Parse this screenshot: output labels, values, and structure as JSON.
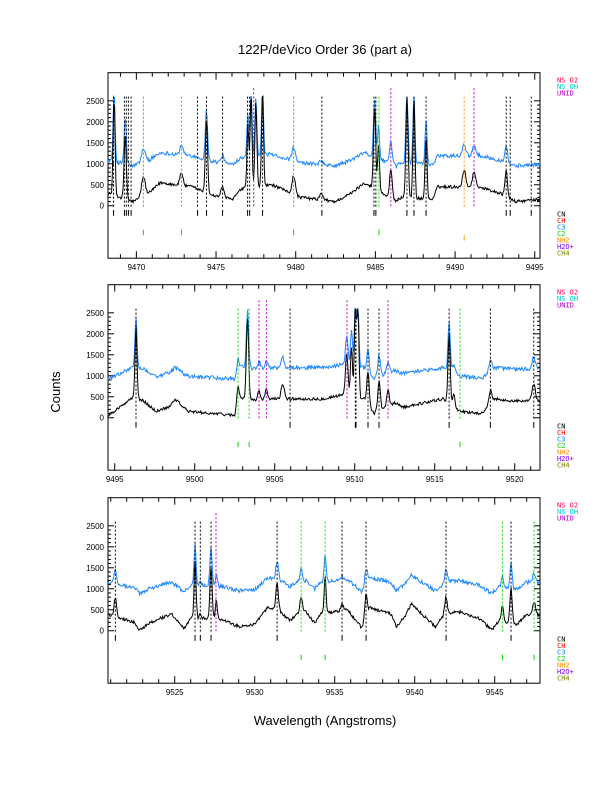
{
  "chart_data": {
    "type": "line",
    "title": "122P/deVico Order 36 (part a)",
    "xlabel": "Wavelength (Angstroms)",
    "ylabel": "Counts",
    "clip_max": 2600,
    "legend_top": [
      {
        "label": "NS O2",
        "color": "#ff0040"
      },
      {
        "label": "NS OH",
        "color": "#00c8c8"
      },
      {
        "label": "UNID",
        "color": "#b000c8"
      }
    ],
    "legend_bottom": [
      {
        "label": "CN",
        "color": "#000000"
      },
      {
        "label": "CH",
        "color": "#ff0000"
      },
      {
        "label": "C3",
        "color": "#0080ff"
      },
      {
        "label": "C2",
        "color": "#00d000"
      },
      {
        "label": "NH2",
        "color": "#ff9000"
      },
      {
        "label": "H2O+",
        "color": "#8000ff"
      },
      {
        "label": "CH4",
        "color": "#808000"
      }
    ],
    "series_colors": {
      "black": "#000000",
      "blue": "#1e88ff"
    },
    "line_colors": {
      "CN": "#000000",
      "C2": "#00e000",
      "UNID": "#c000c8",
      "NH2": "#ff9900"
    },
    "panels": [
      {
        "xlim": [
          9468.22,
          9495.33
        ],
        "ylim": [
          -1250,
          3170
        ],
        "xticks": [
          "9470",
          "9475",
          "9480",
          "9485",
          "9490",
          "9495"
        ],
        "yticks": [
          "0",
          "500",
          "1000",
          "1500",
          "2000",
          "2500"
        ],
        "baseline": [
          [
            9468.2,
            300
          ],
          [
            9469.8,
            100
          ],
          [
            9470.8,
            300
          ],
          [
            9471.5,
            550
          ],
          [
            9473.5,
            450
          ],
          [
            9474.8,
            250
          ],
          [
            9476.0,
            150
          ],
          [
            9476.6,
            400
          ],
          [
            9478.5,
            500
          ],
          [
            9480.3,
            200
          ],
          [
            9482.5,
            100
          ],
          [
            9483.5,
            300
          ],
          [
            9484.3,
            550
          ],
          [
            9486.3,
            100
          ],
          [
            9486.6,
            200
          ],
          [
            9488.6,
            150
          ],
          [
            9488.9,
            450
          ],
          [
            9490.3,
            450
          ],
          [
            9491.5,
            450
          ],
          [
            9492.8,
            300
          ],
          [
            9493.8,
            100
          ],
          [
            9495.4,
            150
          ]
        ],
        "peaks": [
          [
            9468.6,
            2300,
            0.06
          ],
          [
            9469.3,
            1500,
            0.07
          ],
          [
            9470.44,
            450,
            0.12
          ],
          [
            9472.83,
            300,
            0.1
          ],
          [
            9474.4,
            1700,
            0.07
          ],
          [
            9475.41,
            250,
            0.1
          ],
          [
            9477.0,
            1500,
            0.06
          ],
          [
            9477.2,
            2200,
            0.06
          ],
          [
            9477.5,
            2000,
            0.06
          ],
          [
            9477.92,
            2300,
            0.06
          ],
          [
            9479.87,
            450,
            0.1
          ],
          [
            9481.6,
            150,
            0.1
          ],
          [
            9484.95,
            1900,
            0.07
          ],
          [
            9485.2,
            1100,
            0.06
          ],
          [
            9485.97,
            700,
            0.08
          ],
          [
            9486.98,
            2400,
            0.07
          ],
          [
            9487.42,
            2400,
            0.06
          ],
          [
            9488.18,
            1500,
            0.06
          ],
          [
            9490.57,
            400,
            0.1
          ],
          [
            9491.19,
            350,
            0.1
          ],
          [
            9493.21,
            600,
            0.08
          ]
        ],
        "lines": [
          {
            "x": 9468.57,
            "s": "CN"
          },
          {
            "x": 9469.25,
            "s": "CN"
          },
          {
            "x": 9469.37,
            "s": "CN"
          },
          {
            "x": 9469.5,
            "s": "CN"
          },
          {
            "x": 9469.67,
            "s": "CN"
          },
          {
            "x": 9473.84,
            "s": "CN"
          },
          {
            "x": 9474.4,
            "s": "CN"
          },
          {
            "x": 9475.41,
            "s": "CN"
          },
          {
            "x": 9476.98,
            "s": "CN"
          },
          {
            "x": 9477.11,
            "s": "CN"
          },
          {
            "x": 9477.92,
            "s": "CN"
          },
          {
            "x": 9481.64,
            "s": "CN"
          },
          {
            "x": 9484.91,
            "s": "CN"
          },
          {
            "x": 9485.03,
            "s": "CN"
          },
          {
            "x": 9486.98,
            "s": "CN"
          },
          {
            "x": 9487.42,
            "s": "CN"
          },
          {
            "x": 9488.18,
            "s": "CN"
          },
          {
            "x": 9493.21,
            "s": "CN"
          },
          {
            "x": 9493.46,
            "s": "CN"
          },
          {
            "x": 9494.78,
            "s": "CN"
          },
          {
            "x": 9470.44,
            "s": "C2"
          },
          {
            "x": 9472.83,
            "s": "C2"
          },
          {
            "x": 9479.87,
            "s": "C2"
          },
          {
            "x": 9485.22,
            "s": "C2"
          },
          {
            "x": 9477.36,
            "s": "UNID"
          },
          {
            "x": 9485.97,
            "s": "UNID"
          },
          {
            "x": 9491.19,
            "s": "UNID"
          },
          {
            "x": 9490.57,
            "s": "NH2"
          }
        ]
      },
      {
        "xlim": [
          9494.58,
          9521.58
        ],
        "ylim": [
          -1250,
          3170
        ],
        "xticks": [
          "9495",
          "9500",
          "9505",
          "9510",
          "9515",
          "9520"
        ],
        "yticks": [
          "0",
          "500",
          "1000",
          "1500",
          "2000",
          "2500"
        ],
        "baseline": [
          [
            9494.58,
            50
          ],
          [
            9495.5,
            300
          ],
          [
            9496.2,
            500
          ],
          [
            9496.8,
            400
          ],
          [
            9497.6,
            150
          ],
          [
            9499.0,
            350
          ],
          [
            9499.6,
            150
          ],
          [
            9502.5,
            60
          ],
          [
            9502.7,
            500
          ],
          [
            9503.8,
            400
          ],
          [
            9505.0,
            450
          ],
          [
            9508.0,
            450
          ],
          [
            9509.3,
            550
          ],
          [
            9510.6,
            450
          ],
          [
            9511.2,
            100
          ],
          [
            9512.5,
            350
          ],
          [
            9513.0,
            250
          ],
          [
            9515.5,
            450
          ],
          [
            9516.6,
            150
          ],
          [
            9518.0,
            100
          ],
          [
            9518.8,
            450
          ],
          [
            9520.0,
            400
          ],
          [
            9521.58,
            400
          ]
        ],
        "peaks": [
          [
            9496.33,
            1700,
            0.06
          ],
          [
            9498.75,
            120,
            0.15
          ],
          [
            9502.71,
            250,
            0.07
          ],
          [
            9503.3,
            1950,
            0.07
          ],
          [
            9504.02,
            250,
            0.08
          ],
          [
            9504.48,
            250,
            0.08
          ],
          [
            9505.5,
            350,
            0.1
          ],
          [
            9509.5,
            1000,
            0.08
          ],
          [
            9509.8,
            1200,
            0.06
          ],
          [
            9510.04,
            2200,
            0.06
          ],
          [
            9510.2,
            2100,
            0.06
          ],
          [
            9510.83,
            800,
            0.07
          ],
          [
            9511.52,
            700,
            0.08
          ],
          [
            9512.08,
            400,
            0.08
          ],
          [
            9515.9,
            1650,
            0.07
          ],
          [
            9516.2,
            300,
            0.07
          ],
          [
            9518.48,
            350,
            0.1
          ],
          [
            9521.19,
            400,
            0.1
          ]
        ],
        "lines": [
          {
            "x": 9496.33,
            "s": "CN"
          },
          {
            "x": 9505.96,
            "s": "CN"
          },
          {
            "x": 9510.04,
            "s": "CN"
          },
          {
            "x": 9510.08,
            "s": "CN"
          },
          {
            "x": 9510.83,
            "s": "CN"
          },
          {
            "x": 9511.52,
            "s": "CN"
          },
          {
            "x": 9515.9,
            "s": "CN"
          },
          {
            "x": 9518.48,
            "s": "CN"
          },
          {
            "x": 9521.19,
            "s": "CN"
          },
          {
            "x": 9502.71,
            "s": "C2"
          },
          {
            "x": 9503.4,
            "s": "C2"
          },
          {
            "x": 9516.58,
            "s": "C2"
          },
          {
            "x": 9504.02,
            "s": "UNID"
          },
          {
            "x": 9504.48,
            "s": "UNID"
          },
          {
            "x": 9509.52,
            "s": "UNID"
          },
          {
            "x": 9512.08,
            "s": "UNID"
          }
        ]
      },
      {
        "xlim": [
          9520.83,
          9547.83
        ],
        "ylim": [
          -1250,
          3170
        ],
        "xticks": [
          "9525",
          "9530",
          "9535",
          "9540",
          "9545"
        ],
        "yticks": [
          "0",
          "500",
          "1000",
          "1500",
          "2000",
          "2500"
        ],
        "baseline": [
          [
            9520.83,
            380
          ],
          [
            9521.6,
            300
          ],
          [
            9522.5,
            200
          ],
          [
            9522.8,
            20
          ],
          [
            9523.5,
            200
          ],
          [
            9524.8,
            400
          ],
          [
            9525.6,
            60
          ],
          [
            9526.0,
            300
          ],
          [
            9527.0,
            300
          ],
          [
            9528.0,
            250
          ],
          [
            9529.0,
            100
          ],
          [
            9530.0,
            150
          ],
          [
            9530.8,
            550
          ],
          [
            9531.6,
            450
          ],
          [
            9532.2,
            250
          ],
          [
            9532.7,
            400
          ],
          [
            9533.2,
            450
          ],
          [
            9533.75,
            180
          ],
          [
            9534.1,
            400
          ],
          [
            9535.8,
            500
          ],
          [
            9536.7,
            60
          ],
          [
            9537.2,
            550
          ],
          [
            9538.5,
            400
          ],
          [
            9538.85,
            100
          ],
          [
            9539.4,
            350
          ],
          [
            9539.8,
            650
          ],
          [
            9540.3,
            450
          ],
          [
            9541.3,
            100
          ],
          [
            9541.9,
            400
          ],
          [
            9542.8,
            450
          ],
          [
            9544.0,
            300
          ],
          [
            9544.8,
            20
          ],
          [
            9545.3,
            250
          ],
          [
            9545.7,
            200
          ],
          [
            9546.4,
            150
          ],
          [
            9547.0,
            400
          ],
          [
            9547.83,
            350
          ]
        ],
        "peaks": [
          [
            9521.29,
            450,
            0.08
          ],
          [
            9526.27,
            1400,
            0.06
          ],
          [
            9526.6,
            100,
            0.06
          ],
          [
            9527.27,
            1250,
            0.07
          ],
          [
            9527.6,
            450,
            0.06
          ],
          [
            9531.4,
            650,
            0.08
          ],
          [
            9532.9,
            400,
            0.08
          ],
          [
            9534.4,
            900,
            0.06
          ],
          [
            9535.46,
            150,
            0.08
          ],
          [
            9536.96,
            550,
            0.08
          ],
          [
            9541.96,
            400,
            0.08
          ],
          [
            9545.48,
            350,
            0.07
          ],
          [
            9546.02,
            850,
            0.07
          ],
          [
            9547.46,
            300,
            0.1
          ]
        ],
        "lines": [
          {
            "x": 9521.29,
            "s": "CN"
          },
          {
            "x": 9526.27,
            "s": "CN"
          },
          {
            "x": 9526.6,
            "s": "CN"
          },
          {
            "x": 9527.27,
            "s": "CN"
          },
          {
            "x": 9531.4,
            "s": "CN"
          },
          {
            "x": 9535.46,
            "s": "CN"
          },
          {
            "x": 9536.96,
            "s": "CN"
          },
          {
            "x": 9541.96,
            "s": "CN"
          },
          {
            "x": 9546.02,
            "s": "CN"
          },
          {
            "x": 9532.9,
            "s": "C2"
          },
          {
            "x": 9534.4,
            "s": "C2"
          },
          {
            "x": 9545.48,
            "s": "C2"
          },
          {
            "x": 9547.46,
            "s": "C2"
          },
          {
            "x": 9527.58,
            "s": "UNID"
          }
        ]
      }
    ]
  }
}
